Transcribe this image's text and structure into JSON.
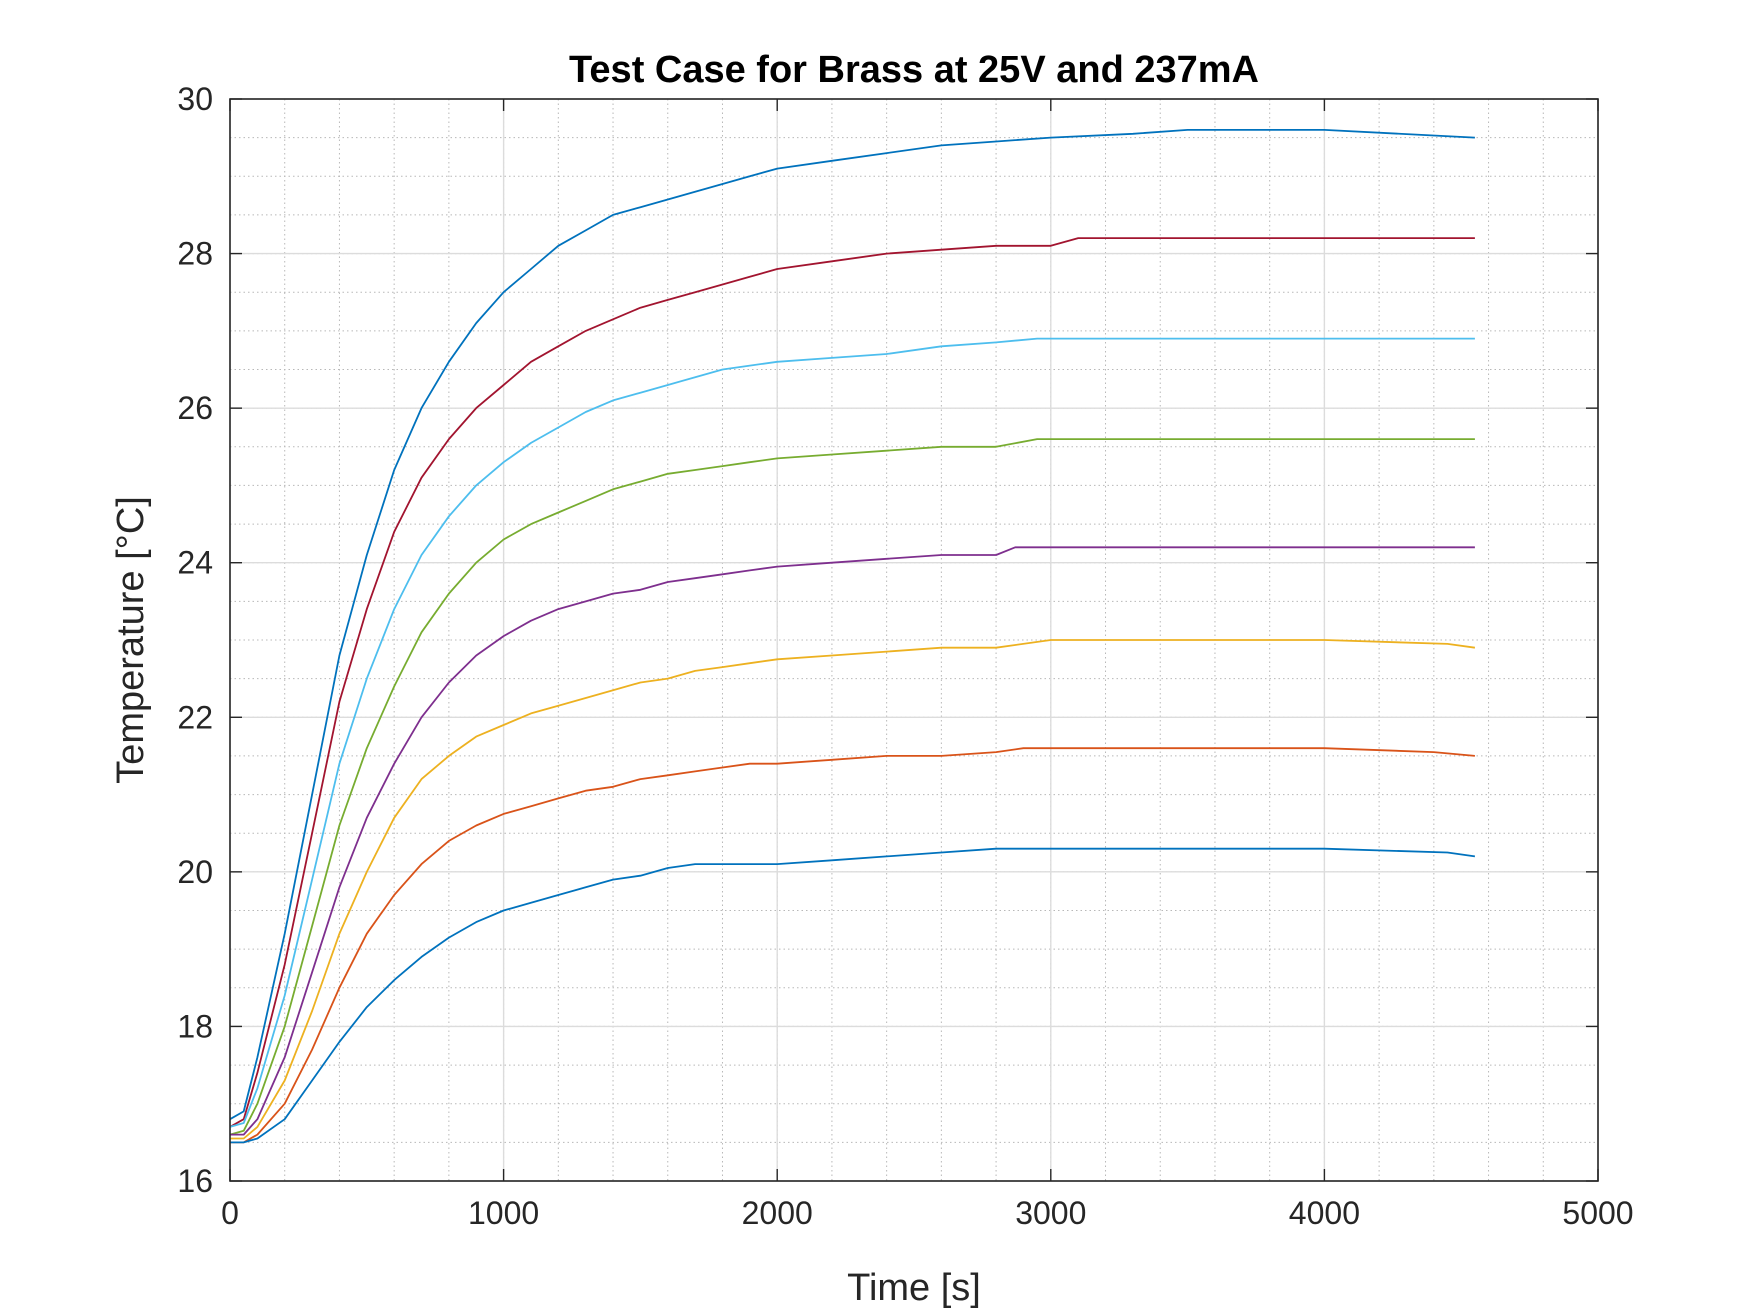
{
  "chart_data": {
    "type": "line",
    "title": "Test Case for Brass at 25V and 237mA",
    "xlabel": "Time [s]",
    "ylabel": "Temperature [°C]",
    "xlim": [
      0,
      5000
    ],
    "ylim": [
      16,
      30
    ],
    "xticks": [
      0,
      1000,
      2000,
      3000,
      4000,
      5000
    ],
    "yticks": [
      16,
      18,
      20,
      22,
      24,
      26,
      28,
      30
    ],
    "xtick_labels": [
      "0",
      "1000",
      "2000",
      "3000",
      "4000",
      "5000"
    ],
    "ytick_labels": [
      "16",
      "18",
      "20",
      "22",
      "24",
      "26",
      "28",
      "30"
    ],
    "grid": true,
    "minor_grid": true,
    "series": [
      {
        "color": "#0072BD",
        "x": [
          0,
          50,
          100,
          200,
          300,
          400,
          500,
          600,
          700,
          800,
          900,
          1000,
          1100,
          1200,
          1300,
          1400,
          1500,
          1600,
          1700,
          1800,
          1900,
          2000,
          2200,
          2400,
          2600,
          2800,
          3000,
          3300,
          3500,
          4000,
          4550
        ],
        "y": [
          16.8,
          16.9,
          17.6,
          19.2,
          21.0,
          22.8,
          24.1,
          25.2,
          26.0,
          26.6,
          27.1,
          27.5,
          27.8,
          28.1,
          28.3,
          28.5,
          28.6,
          28.7,
          28.8,
          28.9,
          29.0,
          29.1,
          29.2,
          29.3,
          29.4,
          29.45,
          29.5,
          29.55,
          29.6,
          29.6,
          29.5
        ]
      },
      {
        "color": "#A2142F",
        "x": [
          0,
          50,
          100,
          200,
          300,
          400,
          500,
          600,
          700,
          800,
          900,
          1000,
          1100,
          1200,
          1300,
          1400,
          1500,
          1600,
          1700,
          1800,
          1900,
          2000,
          2200,
          2400,
          2600,
          2800,
          3000,
          3100,
          3500,
          4000,
          4550
        ],
        "y": [
          16.7,
          16.8,
          17.4,
          18.8,
          20.5,
          22.2,
          23.4,
          24.4,
          25.1,
          25.6,
          26.0,
          26.3,
          26.6,
          26.8,
          27.0,
          27.15,
          27.3,
          27.4,
          27.5,
          27.6,
          27.7,
          27.8,
          27.9,
          28.0,
          28.05,
          28.1,
          28.1,
          28.2,
          28.2,
          28.2,
          28.2
        ]
      },
      {
        "color": "#4DBEEE",
        "x": [
          0,
          50,
          100,
          200,
          300,
          400,
          500,
          600,
          700,
          800,
          900,
          1000,
          1100,
          1200,
          1300,
          1400,
          1500,
          1600,
          1700,
          1800,
          1900,
          2000,
          2200,
          2400,
          2600,
          2800,
          2950,
          3500,
          4000,
          4550
        ],
        "y": [
          16.7,
          16.75,
          17.2,
          18.4,
          19.9,
          21.4,
          22.5,
          23.4,
          24.1,
          24.6,
          25.0,
          25.3,
          25.55,
          25.75,
          25.95,
          26.1,
          26.2,
          26.3,
          26.4,
          26.5,
          26.55,
          26.6,
          26.65,
          26.7,
          26.8,
          26.85,
          26.9,
          26.9,
          26.9,
          26.9
        ]
      },
      {
        "color": "#77AC30",
        "x": [
          0,
          50,
          100,
          200,
          300,
          400,
          500,
          600,
          700,
          800,
          900,
          1000,
          1100,
          1200,
          1300,
          1400,
          1500,
          1600,
          1700,
          1800,
          1900,
          2000,
          2200,
          2400,
          2600,
          2800,
          2950,
          3500,
          4000,
          4550
        ],
        "y": [
          16.6,
          16.65,
          17.0,
          18.0,
          19.3,
          20.6,
          21.6,
          22.4,
          23.1,
          23.6,
          24.0,
          24.3,
          24.5,
          24.65,
          24.8,
          24.95,
          25.05,
          25.15,
          25.2,
          25.25,
          25.3,
          25.35,
          25.4,
          25.45,
          25.5,
          25.5,
          25.6,
          25.6,
          25.6,
          25.6
        ]
      },
      {
        "color": "#7E2F8E",
        "x": [
          0,
          50,
          100,
          200,
          300,
          400,
          500,
          600,
          700,
          800,
          900,
          1000,
          1100,
          1200,
          1300,
          1400,
          1500,
          1600,
          1700,
          1800,
          1900,
          2000,
          2200,
          2400,
          2600,
          2800,
          2870,
          3500,
          4000,
          4550
        ],
        "y": [
          16.6,
          16.6,
          16.8,
          17.6,
          18.7,
          19.8,
          20.7,
          21.4,
          22.0,
          22.45,
          22.8,
          23.05,
          23.25,
          23.4,
          23.5,
          23.6,
          23.65,
          23.75,
          23.8,
          23.85,
          23.9,
          23.95,
          24.0,
          24.05,
          24.1,
          24.1,
          24.2,
          24.2,
          24.2,
          24.2
        ]
      },
      {
        "color": "#EDB120",
        "x": [
          0,
          50,
          100,
          200,
          300,
          400,
          500,
          600,
          700,
          800,
          900,
          1000,
          1100,
          1200,
          1300,
          1400,
          1500,
          1600,
          1700,
          1800,
          1900,
          2000,
          2200,
          2400,
          2600,
          2800,
          3000,
          3500,
          4000,
          4450,
          4550
        ],
        "y": [
          16.55,
          16.55,
          16.7,
          17.3,
          18.2,
          19.2,
          20.0,
          20.7,
          21.2,
          21.5,
          21.75,
          21.9,
          22.05,
          22.15,
          22.25,
          22.35,
          22.45,
          22.5,
          22.6,
          22.65,
          22.7,
          22.75,
          22.8,
          22.85,
          22.9,
          22.9,
          23.0,
          23.0,
          23.0,
          22.95,
          22.9
        ]
      },
      {
        "color": "#D95319",
        "x": [
          0,
          50,
          100,
          200,
          300,
          400,
          500,
          600,
          700,
          800,
          900,
          1000,
          1100,
          1200,
          1300,
          1400,
          1500,
          1600,
          1700,
          1800,
          1900,
          2000,
          2200,
          2400,
          2600,
          2800,
          2900,
          3500,
          4000,
          4400,
          4550
        ],
        "y": [
          16.5,
          16.5,
          16.6,
          17.0,
          17.7,
          18.5,
          19.2,
          19.7,
          20.1,
          20.4,
          20.6,
          20.75,
          20.85,
          20.95,
          21.05,
          21.1,
          21.2,
          21.25,
          21.3,
          21.35,
          21.4,
          21.4,
          21.45,
          21.5,
          21.5,
          21.55,
          21.6,
          21.6,
          21.6,
          21.55,
          21.5
        ]
      },
      {
        "color": "#0072BD",
        "x": [
          0,
          50,
          100,
          200,
          300,
          400,
          500,
          600,
          700,
          800,
          900,
          1000,
          1100,
          1200,
          1300,
          1400,
          1500,
          1600,
          1700,
          1800,
          1900,
          2000,
          2200,
          2400,
          2600,
          2800,
          3000,
          3500,
          4000,
          4450,
          4550
        ],
        "y": [
          16.5,
          16.5,
          16.55,
          16.8,
          17.3,
          17.8,
          18.25,
          18.6,
          18.9,
          19.15,
          19.35,
          19.5,
          19.6,
          19.7,
          19.8,
          19.9,
          19.95,
          20.05,
          20.1,
          20.1,
          20.1,
          20.1,
          20.15,
          20.2,
          20.25,
          20.3,
          20.3,
          20.3,
          20.3,
          20.25,
          20.2
        ]
      }
    ]
  }
}
